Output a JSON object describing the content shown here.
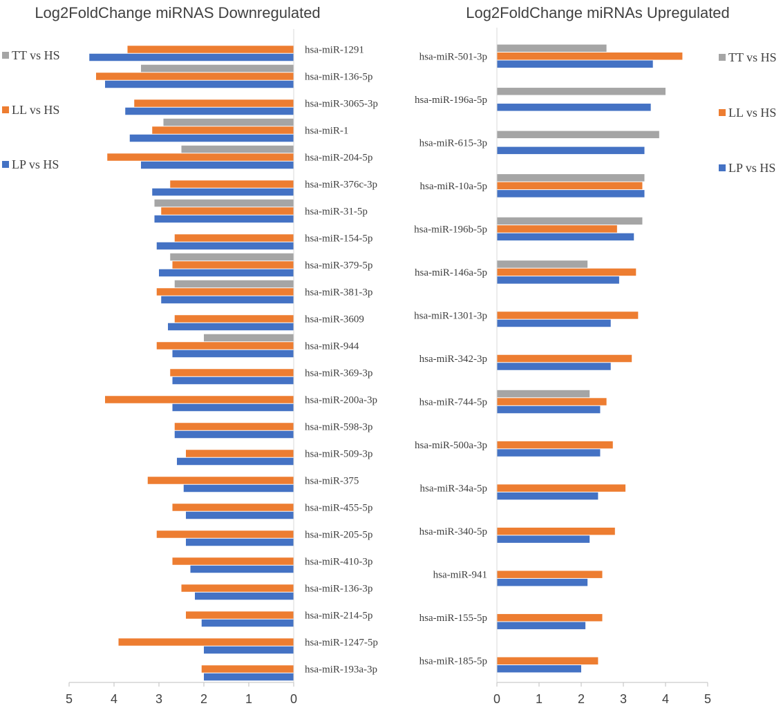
{
  "chart_data": [
    {
      "type": "bar",
      "orientation": "horizontal-reversed",
      "title": "Log2FoldChange miRNAS Downregulated",
      "xlim": [
        0,
        5
      ],
      "xticks": [
        "5",
        "4",
        "3",
        "2",
        "1",
        "0"
      ],
      "categories": [
        "hsa-miR-1291",
        "hsa-miR-136-5p",
        "hsa-miR-3065-3p",
        "hsa-miR-1",
        "hsa-miR-204-5p",
        "hsa-miR-376c-3p",
        "hsa-miR-31-5p",
        "hsa-miR-154-5p",
        "hsa-miR-379-5p",
        "hsa-miR-381-3p",
        "hsa-miR-3609",
        "hsa-miR-944",
        "hsa-miR-369-3p",
        "hsa-miR-200a-3p",
        "hsa-miR-598-3p",
        "hsa-miR-509-3p",
        "hsa-miR-375",
        "hsa-miR-455-5p",
        "hsa-miR-205-5p",
        "hsa-miR-410-3p",
        "hsa-miR-136-3p",
        "hsa-miR-214-5p",
        "hsa-miR-1247-5p",
        "hsa-miR-193a-3p"
      ],
      "series": [
        {
          "name": "TT vs HS",
          "color": "#a5a5a5",
          "values": [
            null,
            3.4,
            null,
            2.9,
            2.5,
            null,
            3.1,
            null,
            2.75,
            2.65,
            null,
            2.0,
            null,
            null,
            null,
            null,
            null,
            null,
            null,
            null,
            null,
            null,
            null,
            null
          ]
        },
        {
          "name": "LL vs HS",
          "color": "#ed7d31",
          "values": [
            3.7,
            4.4,
            3.55,
            3.15,
            4.15,
            2.75,
            2.95,
            2.65,
            2.7,
            3.05,
            2.65,
            3.05,
            2.75,
            4.2,
            2.65,
            2.4,
            3.25,
            2.7,
            3.05,
            2.7,
            2.5,
            2.4,
            3.9,
            2.05
          ]
        },
        {
          "name": "LP vs HS",
          "color": "#4472c4",
          "values": [
            4.55,
            4.2,
            3.75,
            3.65,
            3.4,
            3.15,
            3.1,
            3.05,
            3.0,
            2.95,
            2.8,
            2.7,
            2.7,
            2.7,
            2.65,
            2.6,
            2.45,
            2.4,
            2.4,
            2.3,
            2.2,
            2.05,
            2.0,
            2.0
          ]
        }
      ]
    },
    {
      "type": "bar",
      "orientation": "horizontal",
      "title": "Log2FoldChange miRNAs Upregulated",
      "xlim": [
        0,
        5
      ],
      "xticks": [
        "0",
        "1",
        "2",
        "3",
        "4",
        "5"
      ],
      "categories": [
        "hsa-miR-501-3p",
        "hsa-miR-196a-5p",
        "hsa-miR-615-3p",
        "hsa-miR-10a-5p",
        "hsa-miR-196b-5p",
        "hsa-miR-146a-5p",
        "hsa-miR-1301-3p",
        "hsa-miR-342-3p",
        "hsa-miR-744-5p",
        "hsa-miR-500a-3p",
        "hsa-miR-34a-5p",
        "hsa-miR-340-5p",
        "hsa-miR-941",
        "hsa-miR-155-5p",
        "hsa-miR-185-5p"
      ],
      "series": [
        {
          "name": "TT vs HS",
          "color": "#a5a5a5",
          "values": [
            2.6,
            4.0,
            3.85,
            3.5,
            3.45,
            2.15,
            null,
            null,
            2.2,
            null,
            null,
            null,
            null,
            null,
            null
          ]
        },
        {
          "name": "LL vs HS",
          "color": "#ed7d31",
          "values": [
            4.4,
            null,
            null,
            3.45,
            2.85,
            3.3,
            3.35,
            3.2,
            2.6,
            2.75,
            3.05,
            2.8,
            2.5,
            2.5,
            2.4
          ]
        },
        {
          "name": "LP vs HS",
          "color": "#4472c4",
          "values": [
            3.7,
            3.65,
            3.5,
            3.5,
            3.25,
            2.9,
            2.7,
            2.7,
            2.45,
            2.45,
            2.4,
            2.2,
            2.15,
            2.1,
            2.0
          ]
        }
      ]
    }
  ]
}
